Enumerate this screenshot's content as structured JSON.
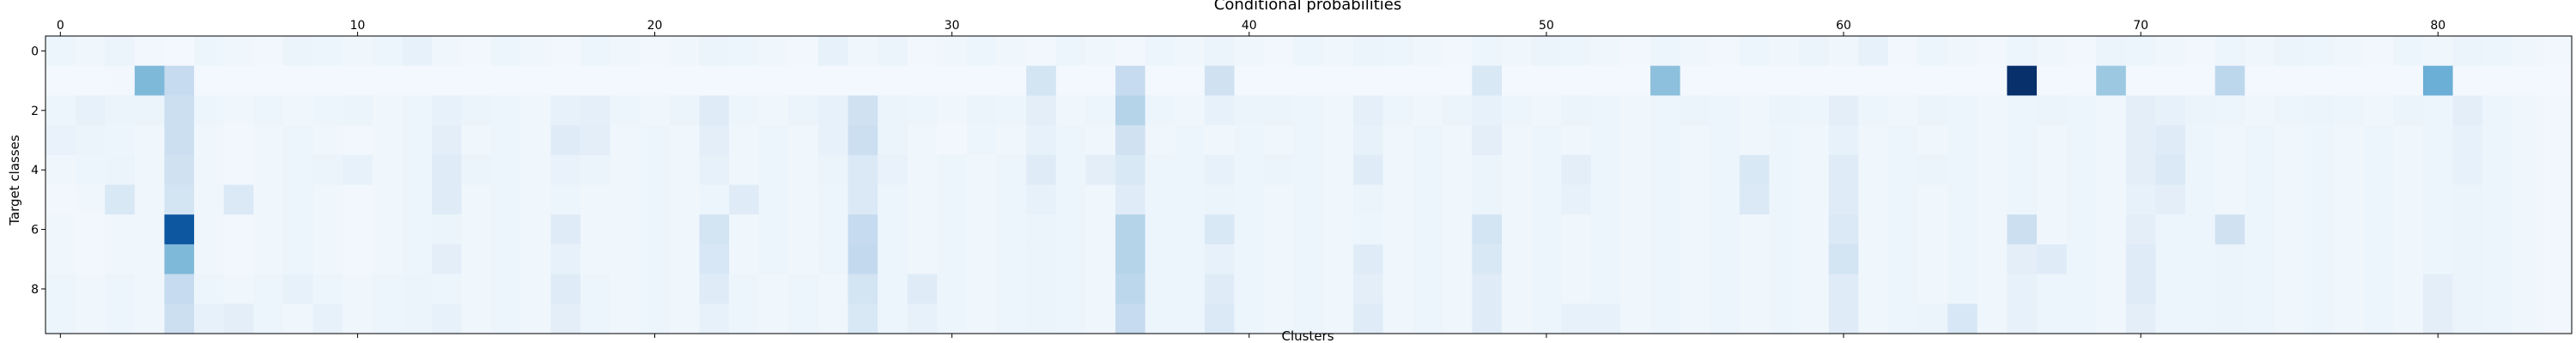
{
  "chart_data": {
    "type": "heatmap",
    "title": "Conditional probabilities",
    "xlabel": "Clusters",
    "ylabel": "Target classes",
    "n_cols": 85,
    "n_rows": 10,
    "x_ticks": [
      0,
      10,
      20,
      30,
      40,
      50,
      60,
      70,
      80
    ],
    "y_ticks": [
      0,
      2,
      4,
      6,
      8
    ],
    "colormap": "Blues",
    "scale_max": 1.0,
    "colors": {
      "low": "#f7fbff",
      "high": "#08306b",
      "axis": "#000000"
    },
    "values": [
      [
        0.05,
        0.04,
        0.06,
        0.03,
        0.02,
        0.05,
        0.04,
        0.03,
        0.06,
        0.05,
        0.04,
        0.05,
        0.08,
        0.04,
        0.03,
        0.05,
        0.04,
        0.03,
        0.05,
        0.04,
        0.03,
        0.04,
        0.06,
        0.05,
        0.04,
        0.03,
        0.08,
        0.04,
        0.06,
        0.03,
        0.04,
        0.05,
        0.04,
        0.03,
        0.05,
        0.04,
        0.03,
        0.05,
        0.04,
        0.06,
        0.04,
        0.03,
        0.05,
        0.04,
        0.06,
        0.05,
        0.04,
        0.03,
        0.05,
        0.04,
        0.06,
        0.05,
        0.04,
        0.03,
        0.05,
        0.04,
        0.03,
        0.05,
        0.04,
        0.06,
        0.04,
        0.08,
        0.03,
        0.05,
        0.04,
        0.03,
        0.05,
        0.04,
        0.03,
        0.06,
        0.05,
        0.04,
        0.03,
        0.05,
        0.04,
        0.06,
        0.05,
        0.04,
        0.03,
        0.05,
        0.04,
        0.06,
        0.05,
        0.04,
        0.03
      ],
      [
        0.02,
        0.02,
        0.03,
        0.45,
        0.25,
        0.02,
        0.02,
        0.02,
        0.02,
        0.02,
        0.02,
        0.02,
        0.02,
        0.02,
        0.02,
        0.02,
        0.02,
        0.02,
        0.02,
        0.02,
        0.02,
        0.02,
        0.02,
        0.02,
        0.02,
        0.02,
        0.02,
        0.02,
        0.02,
        0.02,
        0.02,
        0.02,
        0.02,
        0.18,
        0.02,
        0.02,
        0.25,
        0.02,
        0.02,
        0.2,
        0.02,
        0.02,
        0.02,
        0.02,
        0.02,
        0.02,
        0.02,
        0.02,
        0.15,
        0.02,
        0.02,
        0.02,
        0.02,
        0.02,
        0.42,
        0.02,
        0.02,
        0.02,
        0.02,
        0.02,
        0.02,
        0.02,
        0.02,
        0.02,
        0.02,
        0.02,
        1.0,
        0.02,
        0.02,
        0.38,
        0.02,
        0.02,
        0.02,
        0.28,
        0.02,
        0.02,
        0.02,
        0.02,
        0.02,
        0.02,
        0.5,
        0.02,
        0.02,
        0.02,
        0.02
      ],
      [
        0.05,
        0.08,
        0.06,
        0.06,
        0.22,
        0.05,
        0.04,
        0.05,
        0.04,
        0.05,
        0.06,
        0.04,
        0.05,
        0.08,
        0.06,
        0.05,
        0.04,
        0.08,
        0.09,
        0.05,
        0.04,
        0.06,
        0.12,
        0.05,
        0.04,
        0.06,
        0.08,
        0.2,
        0.06,
        0.05,
        0.04,
        0.06,
        0.05,
        0.1,
        0.04,
        0.05,
        0.3,
        0.05,
        0.04,
        0.08,
        0.06,
        0.06,
        0.05,
        0.04,
        0.09,
        0.05,
        0.04,
        0.06,
        0.08,
        0.05,
        0.04,
        0.06,
        0.05,
        0.04,
        0.05,
        0.06,
        0.05,
        0.04,
        0.06,
        0.05,
        0.1,
        0.05,
        0.04,
        0.06,
        0.05,
        0.04,
        0.05,
        0.06,
        0.05,
        0.04,
        0.1,
        0.08,
        0.06,
        0.05,
        0.04,
        0.05,
        0.06,
        0.05,
        0.04,
        0.06,
        0.05,
        0.1,
        0.05,
        0.04,
        0.03
      ],
      [
        0.07,
        0.06,
        0.05,
        0.04,
        0.22,
        0.04,
        0.03,
        0.04,
        0.05,
        0.04,
        0.03,
        0.04,
        0.05,
        0.1,
        0.04,
        0.05,
        0.04,
        0.12,
        0.1,
        0.04,
        0.05,
        0.04,
        0.1,
        0.04,
        0.05,
        0.04,
        0.08,
        0.22,
        0.06,
        0.04,
        0.03,
        0.05,
        0.04,
        0.08,
        0.05,
        0.04,
        0.2,
        0.04,
        0.05,
        0.04,
        0.05,
        0.04,
        0.05,
        0.04,
        0.08,
        0.04,
        0.05,
        0.04,
        0.1,
        0.04,
        0.05,
        0.04,
        0.05,
        0.04,
        0.05,
        0.04,
        0.05,
        0.04,
        0.05,
        0.04,
        0.08,
        0.04,
        0.05,
        0.04,
        0.05,
        0.04,
        0.05,
        0.04,
        0.05,
        0.04,
        0.1,
        0.12,
        0.05,
        0.04,
        0.05,
        0.04,
        0.05,
        0.04,
        0.05,
        0.04,
        0.05,
        0.08,
        0.05,
        0.04,
        0.03
      ],
      [
        0.04,
        0.05,
        0.06,
        0.04,
        0.2,
        0.04,
        0.03,
        0.04,
        0.05,
        0.06,
        0.08,
        0.04,
        0.05,
        0.12,
        0.06,
        0.05,
        0.04,
        0.07,
        0.06,
        0.04,
        0.05,
        0.04,
        0.08,
        0.04,
        0.05,
        0.04,
        0.06,
        0.14,
        0.07,
        0.04,
        0.05,
        0.04,
        0.05,
        0.12,
        0.05,
        0.1,
        0.15,
        0.05,
        0.05,
        0.08,
        0.05,
        0.06,
        0.05,
        0.04,
        0.12,
        0.04,
        0.05,
        0.04,
        0.06,
        0.04,
        0.05,
        0.1,
        0.05,
        0.04,
        0.05,
        0.04,
        0.05,
        0.15,
        0.05,
        0.04,
        0.12,
        0.04,
        0.05,
        0.06,
        0.05,
        0.04,
        0.05,
        0.04,
        0.05,
        0.04,
        0.1,
        0.14,
        0.05,
        0.04,
        0.05,
        0.04,
        0.05,
        0.04,
        0.05,
        0.04,
        0.05,
        0.08,
        0.05,
        0.04,
        0.03
      ],
      [
        0.03,
        0.04,
        0.15,
        0.04,
        0.18,
        0.04,
        0.14,
        0.04,
        0.05,
        0.04,
        0.03,
        0.04,
        0.05,
        0.12,
        0.04,
        0.05,
        0.04,
        0.05,
        0.04,
        0.04,
        0.05,
        0.04,
        0.05,
        0.12,
        0.05,
        0.04,
        0.05,
        0.14,
        0.05,
        0.04,
        0.05,
        0.04,
        0.05,
        0.08,
        0.05,
        0.04,
        0.12,
        0.05,
        0.05,
        0.06,
        0.05,
        0.04,
        0.05,
        0.04,
        0.06,
        0.04,
        0.05,
        0.04,
        0.06,
        0.04,
        0.05,
        0.08,
        0.05,
        0.04,
        0.05,
        0.04,
        0.05,
        0.14,
        0.05,
        0.04,
        0.12,
        0.04,
        0.05,
        0.04,
        0.05,
        0.04,
        0.05,
        0.04,
        0.05,
        0.04,
        0.08,
        0.1,
        0.05,
        0.04,
        0.05,
        0.04,
        0.05,
        0.04,
        0.05,
        0.04,
        0.05,
        0.06,
        0.05,
        0.04,
        0.03
      ],
      [
        0.04,
        0.03,
        0.04,
        0.04,
        0.85,
        0.04,
        0.03,
        0.04,
        0.05,
        0.04,
        0.03,
        0.04,
        0.05,
        0.06,
        0.04,
        0.05,
        0.04,
        0.12,
        0.04,
        0.04,
        0.05,
        0.04,
        0.18,
        0.04,
        0.05,
        0.04,
        0.05,
        0.25,
        0.05,
        0.04,
        0.05,
        0.04,
        0.05,
        0.06,
        0.05,
        0.04,
        0.3,
        0.05,
        0.05,
        0.15,
        0.05,
        0.04,
        0.05,
        0.04,
        0.05,
        0.04,
        0.05,
        0.04,
        0.18,
        0.04,
        0.05,
        0.04,
        0.05,
        0.04,
        0.05,
        0.04,
        0.05,
        0.04,
        0.05,
        0.04,
        0.14,
        0.04,
        0.05,
        0.04,
        0.05,
        0.04,
        0.22,
        0.04,
        0.05,
        0.04,
        0.1,
        0.05,
        0.05,
        0.2,
        0.05,
        0.04,
        0.05,
        0.04,
        0.05,
        0.04,
        0.05,
        0.06,
        0.05,
        0.04,
        0.03
      ],
      [
        0.04,
        0.03,
        0.04,
        0.04,
        0.45,
        0.04,
        0.03,
        0.04,
        0.05,
        0.04,
        0.03,
        0.04,
        0.05,
        0.1,
        0.04,
        0.05,
        0.04,
        0.08,
        0.04,
        0.04,
        0.05,
        0.04,
        0.16,
        0.04,
        0.05,
        0.04,
        0.05,
        0.26,
        0.05,
        0.04,
        0.05,
        0.04,
        0.05,
        0.06,
        0.05,
        0.04,
        0.3,
        0.05,
        0.05,
        0.08,
        0.05,
        0.04,
        0.05,
        0.04,
        0.12,
        0.04,
        0.05,
        0.04,
        0.15,
        0.04,
        0.05,
        0.04,
        0.05,
        0.04,
        0.05,
        0.04,
        0.05,
        0.04,
        0.05,
        0.04,
        0.18,
        0.04,
        0.05,
        0.04,
        0.05,
        0.04,
        0.1,
        0.12,
        0.05,
        0.04,
        0.12,
        0.05,
        0.05,
        0.06,
        0.05,
        0.04,
        0.05,
        0.04,
        0.05,
        0.04,
        0.05,
        0.06,
        0.05,
        0.04,
        0.03
      ],
      [
        0.05,
        0.04,
        0.05,
        0.04,
        0.25,
        0.05,
        0.04,
        0.05,
        0.08,
        0.05,
        0.04,
        0.05,
        0.06,
        0.05,
        0.04,
        0.05,
        0.04,
        0.12,
        0.05,
        0.04,
        0.05,
        0.04,
        0.12,
        0.05,
        0.04,
        0.05,
        0.04,
        0.18,
        0.05,
        0.12,
        0.05,
        0.04,
        0.05,
        0.06,
        0.05,
        0.04,
        0.28,
        0.05,
        0.05,
        0.12,
        0.05,
        0.04,
        0.05,
        0.04,
        0.1,
        0.04,
        0.05,
        0.04,
        0.12,
        0.04,
        0.05,
        0.04,
        0.05,
        0.04,
        0.05,
        0.04,
        0.05,
        0.04,
        0.05,
        0.04,
        0.12,
        0.04,
        0.05,
        0.04,
        0.05,
        0.04,
        0.08,
        0.05,
        0.05,
        0.04,
        0.12,
        0.05,
        0.05,
        0.06,
        0.05,
        0.04,
        0.05,
        0.04,
        0.05,
        0.04,
        0.1,
        0.06,
        0.05,
        0.04,
        0.03
      ],
      [
        0.05,
        0.04,
        0.05,
        0.04,
        0.22,
        0.08,
        0.1,
        0.05,
        0.04,
        0.08,
        0.04,
        0.05,
        0.06,
        0.08,
        0.04,
        0.05,
        0.04,
        0.1,
        0.05,
        0.04,
        0.05,
        0.04,
        0.08,
        0.05,
        0.04,
        0.05,
        0.04,
        0.15,
        0.05,
        0.08,
        0.05,
        0.04,
        0.05,
        0.06,
        0.05,
        0.04,
        0.25,
        0.05,
        0.05,
        0.14,
        0.05,
        0.04,
        0.05,
        0.04,
        0.12,
        0.04,
        0.05,
        0.04,
        0.12,
        0.04,
        0.05,
        0.08,
        0.08,
        0.04,
        0.05,
        0.04,
        0.05,
        0.04,
        0.05,
        0.04,
        0.12,
        0.04,
        0.05,
        0.06,
        0.16,
        0.04,
        0.08,
        0.05,
        0.05,
        0.04,
        0.1,
        0.05,
        0.05,
        0.06,
        0.05,
        0.04,
        0.05,
        0.04,
        0.05,
        0.04,
        0.1,
        0.06,
        0.05,
        0.04,
        0.03
      ]
    ]
  }
}
